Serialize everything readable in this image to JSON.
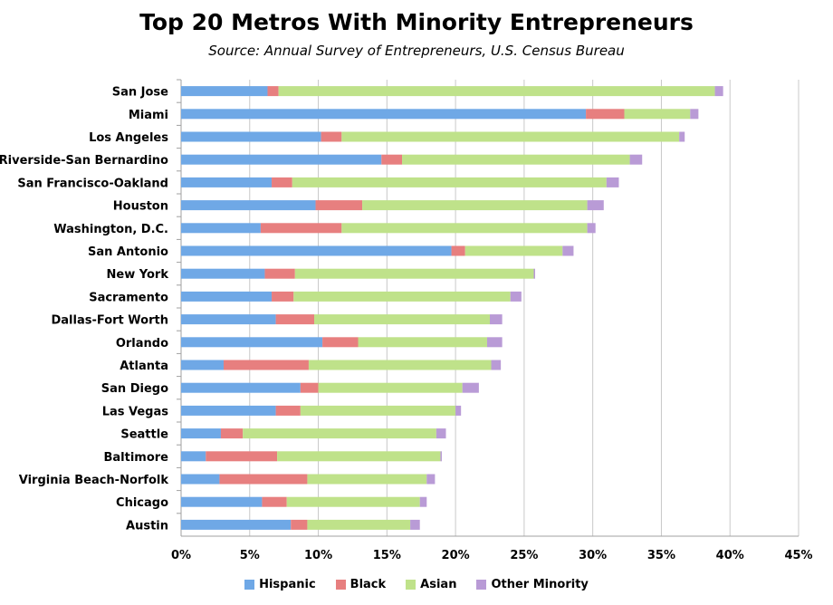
{
  "chart_data": {
    "type": "bar",
    "orientation": "horizontal",
    "stacked": true,
    "title": "Top 20 Metros With Minority Entrepreneurs",
    "subtitle": "Source: Annual Survey of Entrepreneurs, U.S. Census Bureau",
    "categories": [
      "San Jose",
      "Miami",
      "Los Angeles",
      "Riverside-San Bernardino",
      "San Francisco-Oakland",
      "Houston",
      "Washington, D.C.",
      "San Antonio",
      "New York",
      "Sacramento",
      "Dallas-Fort Worth",
      "Orlando",
      "Atlanta",
      "San Diego",
      "Las Vegas",
      "Seattle",
      "Baltimore",
      "Virginia Beach-Norfolk",
      "Chicago",
      "Austin"
    ],
    "series": [
      {
        "name": "Hispanic",
        "color": "#6fa8e6",
        "values": [
          6.3,
          29.5,
          10.2,
          14.6,
          6.6,
          9.8,
          5.8,
          19.7,
          6.1,
          6.6,
          6.9,
          10.3,
          3.1,
          8.7,
          6.9,
          2.9,
          1.8,
          2.8,
          5.9,
          8.0
        ]
      },
      {
        "name": "Black",
        "color": "#e77f7f",
        "values": [
          0.8,
          2.8,
          1.5,
          1.5,
          1.5,
          3.4,
          5.9,
          1.0,
          2.2,
          1.6,
          2.8,
          2.6,
          6.2,
          1.3,
          1.8,
          1.6,
          5.2,
          6.4,
          1.8,
          1.2
        ]
      },
      {
        "name": "Asian",
        "color": "#bfe28a",
        "values": [
          31.8,
          4.8,
          24.6,
          16.6,
          22.9,
          16.4,
          17.9,
          7.1,
          17.4,
          15.8,
          12.8,
          9.4,
          13.3,
          10.5,
          11.3,
          14.1,
          11.9,
          8.7,
          9.7,
          7.5
        ]
      },
      {
        "name": "Other Minority",
        "color": "#b99bd6",
        "values": [
          0.6,
          0.6,
          0.4,
          0.9,
          0.9,
          1.2,
          0.6,
          0.8,
          0.1,
          0.8,
          0.9,
          1.1,
          0.7,
          1.2,
          0.4,
          0.7,
          0.1,
          0.6,
          0.5,
          0.7
        ]
      }
    ],
    "x_ticks": [
      "0%",
      "5%",
      "10%",
      "15%",
      "20%",
      "25%",
      "30%",
      "35%",
      "40%",
      "45%"
    ],
    "xlim": [
      0,
      45
    ],
    "xlabel": "",
    "ylabel": "",
    "grid": true,
    "legend_position": "bottom"
  }
}
